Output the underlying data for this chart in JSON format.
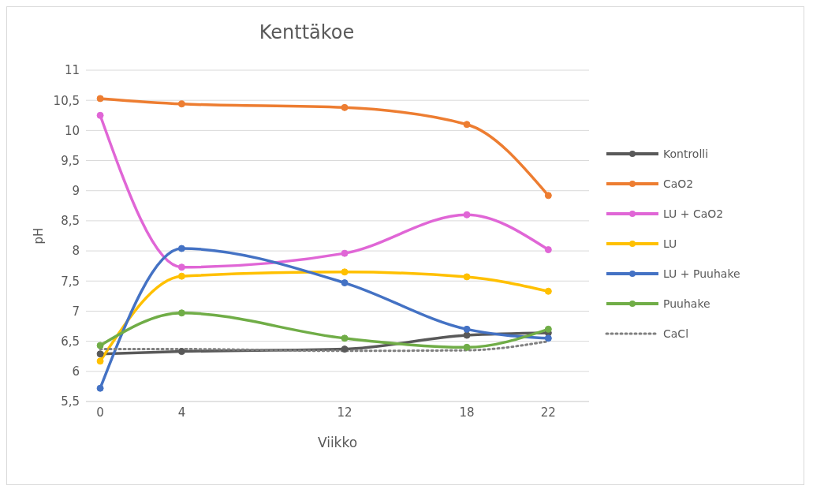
{
  "chart_data": {
    "type": "line",
    "title": "Kenttäkoe",
    "xlabel": "Viikko",
    "ylabel": "pH",
    "x": [
      0,
      4,
      12,
      18,
      22
    ],
    "xlim": [
      -0.7,
      24
    ],
    "xticks": [
      0,
      4,
      12,
      18,
      22
    ],
    "ylim": [
      5.5,
      11
    ],
    "yticks": [
      {
        "value": 5.5,
        "label": "5,5"
      },
      6,
      {
        "value": 6.5,
        "label": "6,5"
      },
      7,
      {
        "value": 7.5,
        "label": "7,5"
      },
      8,
      {
        "value": 8.5,
        "label": "8,5"
      },
      9,
      {
        "value": 9.5,
        "label": "9,5"
      },
      10,
      {
        "value": 10.5,
        "label": "10,5"
      },
      11
    ],
    "grid": "y",
    "legend": "right",
    "marker": "circle",
    "line_style": "solid",
    "series": [
      {
        "name": "Kontrolli",
        "color": "#595959",
        "values": [
          6.29,
          6.33,
          6.37,
          6.6,
          6.64
        ]
      },
      {
        "name": "CaO2",
        "color": "#ed7d31",
        "values": [
          10.53,
          10.44,
          10.38,
          10.1,
          8.92
        ]
      },
      {
        "name": "LU + CaO2",
        "color": "#e066d6",
        "values": [
          10.25,
          7.73,
          7.96,
          8.6,
          8.02
        ]
      },
      {
        "name": "LU",
        "color": "#ffc000",
        "values": [
          6.17,
          7.58,
          7.65,
          7.57,
          7.33
        ]
      },
      {
        "name": "LU + Puuhake",
        "color": "#4472c4",
        "values": [
          5.72,
          8.04,
          7.47,
          6.7,
          6.55
        ]
      },
      {
        "name": "Puuhake",
        "color": "#70ad47",
        "values": [
          6.43,
          6.97,
          6.55,
          6.4,
          6.7
        ]
      },
      {
        "name": "CaCl",
        "color": "#808080",
        "values": [
          6.37,
          6.37,
          6.34,
          6.35,
          6.5
        ],
        "line_style": "dotted",
        "marker": "none"
      }
    ]
  }
}
